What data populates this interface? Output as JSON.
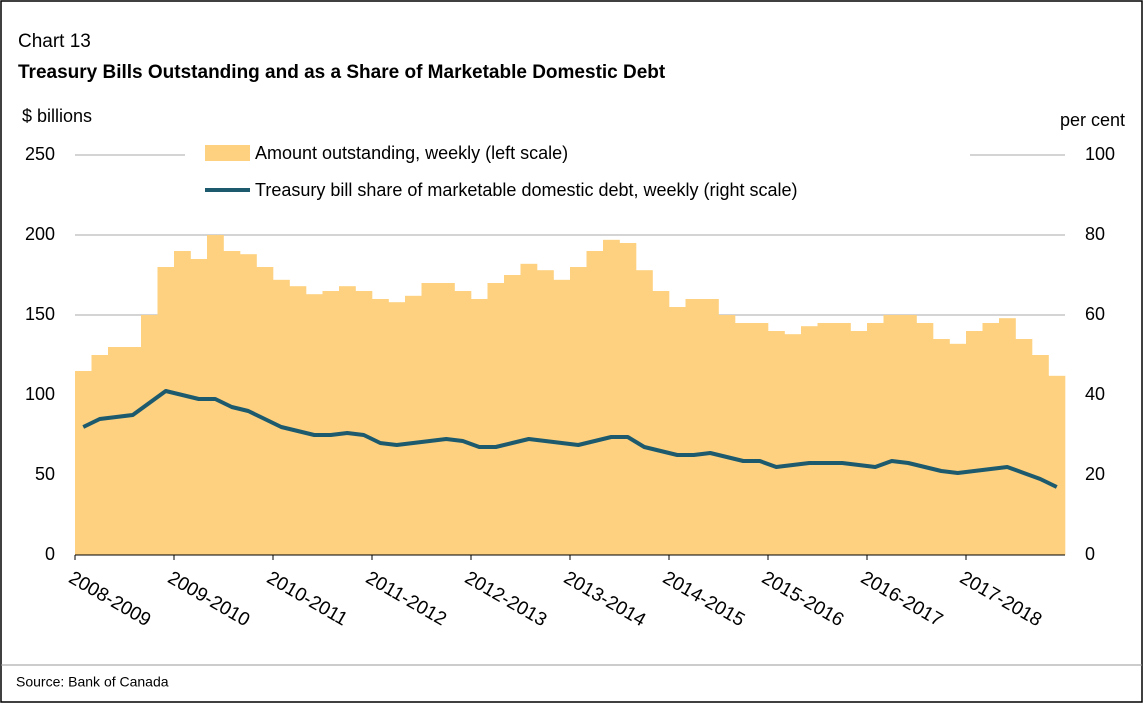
{
  "chart_data": {
    "type": "bar_line",
    "label": "Chart 13",
    "title": "Treasury Bills Outstanding and as a Share of Marketable Domestic Debt",
    "y_label": "$ billions",
    "y2_label": "per cent",
    "source": "Source: Bank of Canada",
    "categories": [
      "2008-2009",
      null,
      null,
      null,
      null,
      null,
      "2009-2010",
      null,
      null,
      null,
      null,
      null,
      "2010-2011",
      null,
      null,
      null,
      null,
      null,
      "2011-2012",
      null,
      null,
      null,
      null,
      null,
      "2012-2013",
      null,
      null,
      null,
      null,
      null,
      "2013-2014",
      null,
      null,
      null,
      null,
      null,
      "2014-2015",
      null,
      null,
      null,
      null,
      null,
      "2015-2016",
      null,
      null,
      null,
      null,
      null,
      "2016-2017",
      null,
      null,
      null,
      null,
      null,
      "2017-2018",
      null,
      null,
      null,
      null,
      null
    ],
    "series": [
      {
        "name": "Amount outstanding, weekly (left scale)",
        "color": "#fdd17f",
        "axis": "y",
        "values": [
          115,
          125,
          130,
          130,
          150,
          180,
          190,
          185,
          200,
          190,
          188,
          180,
          172,
          168,
          163,
          165,
          168,
          165,
          160,
          158,
          162,
          170,
          170,
          165,
          160,
          170,
          175,
          182,
          178,
          172,
          180,
          190,
          197,
          195,
          178,
          165,
          155,
          160,
          160,
          150,
          145,
          145,
          140,
          138,
          143,
          145,
          145,
          140,
          145,
          150,
          150,
          145,
          135,
          132,
          140,
          145,
          148,
          135,
          125,
          112
        ]
      },
      {
        "name": "Treasury bill share of marketable domestic debt, weekly (right scale)",
        "color": "#1d5a6e",
        "axis": "y2",
        "values": [
          32,
          34,
          34.5,
          35,
          38,
          41,
          40,
          39,
          39,
          37,
          36,
          34,
          32,
          31,
          30,
          30,
          30.5,
          30,
          28,
          27.5,
          28,
          28.5,
          29,
          28.5,
          27,
          27,
          28,
          29,
          28.5,
          28,
          27.5,
          28.5,
          29.5,
          29.5,
          27,
          26,
          25,
          25,
          25.5,
          24.5,
          23.5,
          23.5,
          22,
          22.5,
          23,
          23,
          23,
          22.5,
          22,
          23.5,
          23,
          22,
          21,
          20.5,
          21,
          21.5,
          22,
          20.5,
          19,
          17
        ]
      }
    ],
    "ylim": [
      0,
      250
    ],
    "yticks": [
      0,
      50,
      100,
      150,
      200,
      250
    ],
    "y2lim": [
      0,
      100
    ],
    "y2ticks": [
      0,
      20,
      40,
      60,
      80,
      100
    ],
    "grid": true
  }
}
